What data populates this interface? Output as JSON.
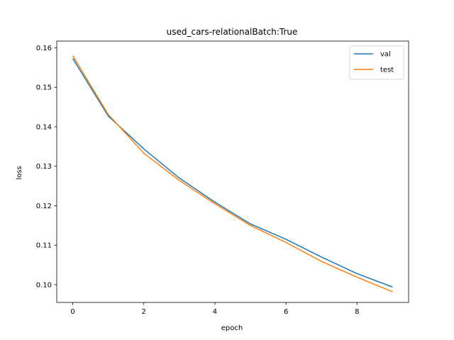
{
  "chart_data": {
    "type": "line",
    "title": "used_cars-relationalBatch:True",
    "xlabel": "epoch",
    "ylabel": "loss",
    "xlim": [
      -0.45,
      9.45
    ],
    "ylim": [
      0.0955,
      0.1617
    ],
    "xticks": [
      0,
      2,
      4,
      6,
      8
    ],
    "xtick_labels": [
      "0",
      "2",
      "4",
      "6",
      "8"
    ],
    "yticks": [
      0.1,
      0.11,
      0.12,
      0.13,
      0.14,
      0.15,
      0.16
    ],
    "ytick_labels": [
      "0.10",
      "0.11",
      "0.12",
      "0.13",
      "0.14",
      "0.15",
      "0.16"
    ],
    "grid": false,
    "legend_position": "top-right",
    "x": [
      0,
      1,
      2,
      3,
      4,
      5,
      6,
      7,
      8,
      9
    ],
    "series": [
      {
        "name": "val",
        "color": "#1f77b4",
        "values": [
          0.1573,
          0.1427,
          0.1344,
          0.127,
          0.1209,
          0.1154,
          0.1115,
          0.107,
          0.1028,
          0.0994
        ]
      },
      {
        "name": "test",
        "color": "#ff7f0e",
        "values": [
          0.158,
          0.1431,
          0.1333,
          0.1264,
          0.1205,
          0.115,
          0.1107,
          0.1059,
          0.1019,
          0.0982
        ]
      }
    ]
  }
}
